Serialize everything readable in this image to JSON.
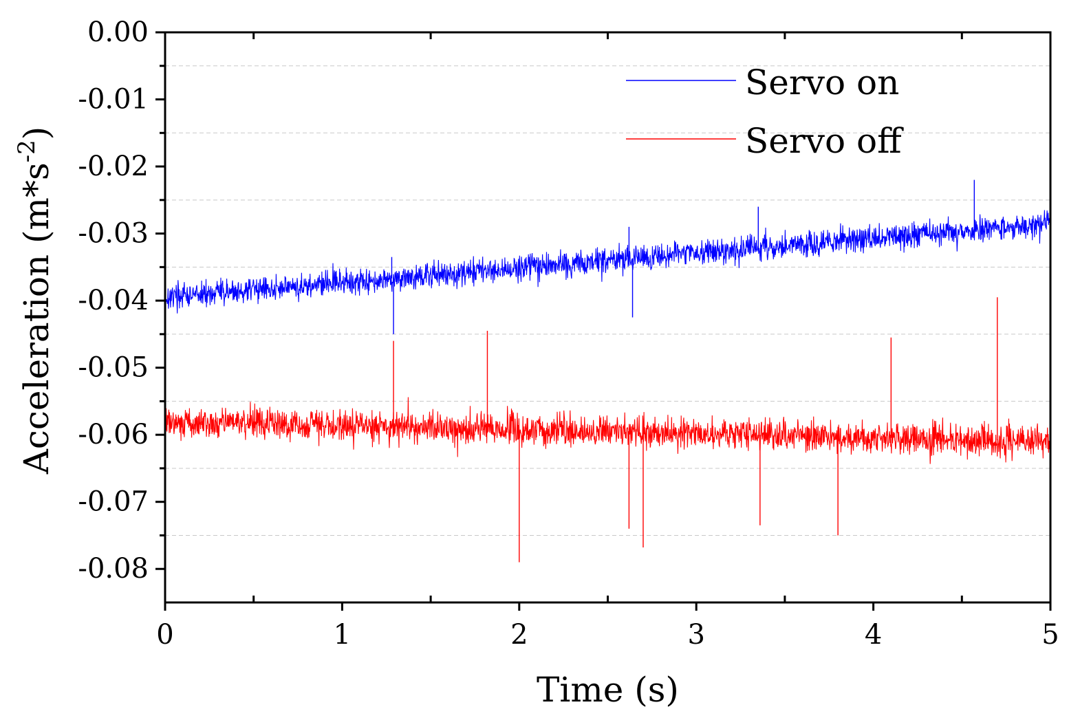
{
  "chart_data": {
    "type": "line",
    "title": "",
    "xlabel": "Time (s)",
    "ylabel_main": "Acceleration (m*s",
    "ylabel_sup": "-2",
    "ylabel_end": ")",
    "xlim": [
      0,
      5
    ],
    "ylim": [
      -0.085,
      0.0
    ],
    "x_ticks": [
      0,
      1,
      2,
      3,
      4,
      5
    ],
    "x_tick_labels": [
      "0",
      "1",
      "2",
      "3",
      "4",
      "5"
    ],
    "x_minor_ticks": [
      0.5,
      1.5,
      2.5,
      3.5,
      4.5
    ],
    "y_ticks": [
      0.0,
      -0.01,
      -0.02,
      -0.03,
      -0.04,
      -0.05,
      -0.06,
      -0.07,
      -0.08
    ],
    "y_tick_labels": [
      "0.00",
      "-0.01",
      "-0.02",
      "-0.03",
      "-0.04",
      "-0.05",
      "-0.06",
      "-0.07",
      "-0.08"
    ],
    "y_minor_gridlines": [
      -0.005,
      -0.015,
      -0.025,
      -0.035,
      -0.045,
      -0.055,
      -0.065,
      -0.075
    ],
    "legend_position": "top-right",
    "series": [
      {
        "name": "Servo on",
        "color": "#0000ff",
        "start_mean": -0.0395,
        "end_mean": -0.0285,
        "noise_amplitude": 0.0028,
        "peaks": [
          {
            "x": 1.28,
            "y": -0.0335
          },
          {
            "x": 2.62,
            "y": -0.029
          },
          {
            "x": 3.35,
            "y": -0.026
          },
          {
            "x": 4.57,
            "y": -0.022
          },
          {
            "x": 1.29,
            "y": -0.045
          },
          {
            "x": 2.64,
            "y": -0.0425
          }
        ],
        "samples": 2400
      },
      {
        "name": "Servo off",
        "color": "#ff0000",
        "start_mean": -0.058,
        "end_mean": -0.061,
        "noise_amplitude": 0.0035,
        "peaks": [
          {
            "x": 1.82,
            "y": -0.0445
          },
          {
            "x": 1.29,
            "y": -0.046
          },
          {
            "x": 4.7,
            "y": -0.0395
          },
          {
            "x": 4.1,
            "y": -0.0455
          },
          {
            "x": 2.0,
            "y": -0.079
          },
          {
            "x": 2.7,
            "y": -0.0768
          },
          {
            "x": 2.62,
            "y": -0.074
          },
          {
            "x": 3.36,
            "y": -0.0735
          },
          {
            "x": 3.8,
            "y": -0.075
          }
        ],
        "samples": 2400
      }
    ]
  }
}
